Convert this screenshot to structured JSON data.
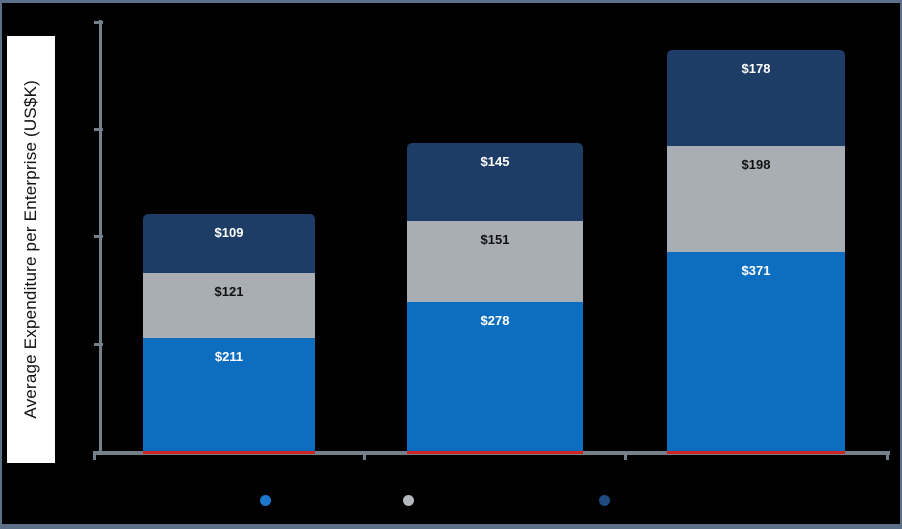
{
  "chart_data": {
    "type": "bar",
    "stacked": true,
    "title": "",
    "ylabel": "Average Expenditure per Enterprise (US$K)",
    "xlabel": "",
    "ylim": [
      0,
      800
    ],
    "ytick_step": 200,
    "grid": false,
    "plot_background": "#000000",
    "categories": [
      "",
      "",
      ""
    ],
    "series": [
      {
        "name": "bottom-segment",
        "color": "#0d6ec0",
        "label_text_color": "#ffffff",
        "values": [
          211,
          278,
          371
        ]
      },
      {
        "name": "middle-segment",
        "color": "#a9aeb4",
        "label_text_color": "#111111",
        "values": [
          121,
          151,
          198
        ]
      },
      {
        "name": "top-segment",
        "color": "#1d3d66",
        "label_text_color": "#ffffff",
        "values": [
          109,
          145,
          178
        ]
      }
    ],
    "data_label_prefix": "$",
    "legend_position": "bottom",
    "legend_marker_colors": [
      "#1b78cc",
      "#b3b8be",
      "#1d4b7e"
    ]
  },
  "styles": {
    "axis_color": "#75808d",
    "baseline_accent_color": "#d02421",
    "frame_border_color": "#5d7089",
    "ylabel_background": "#ffffff",
    "ylabel_text_color": "#111111"
  }
}
